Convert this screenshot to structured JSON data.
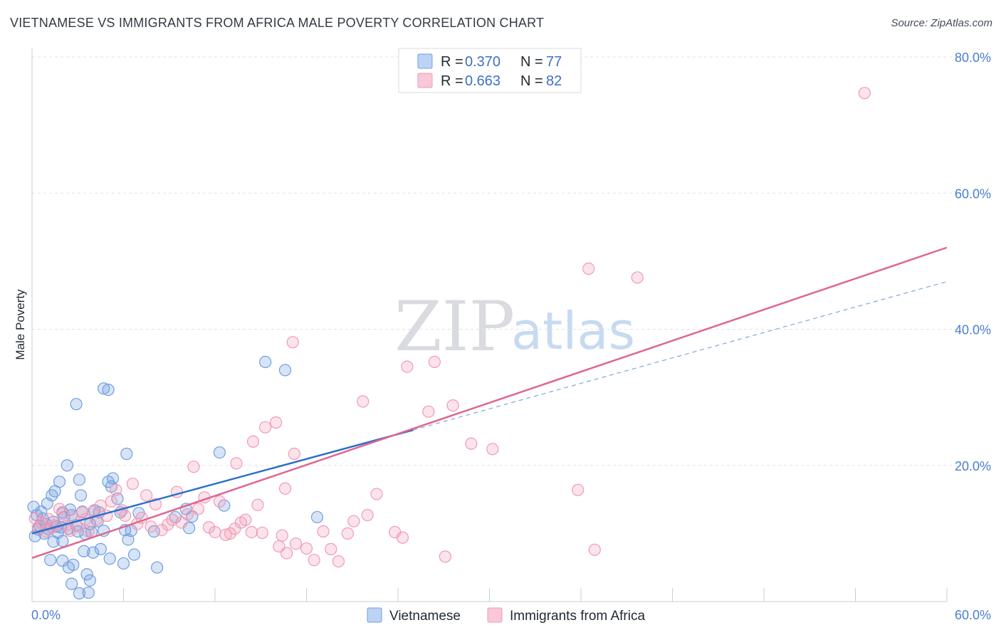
{
  "header": {
    "title": "VIETNAMESE VS IMMIGRANTS FROM AFRICA MALE POVERTY CORRELATION CHART",
    "source": "Source: ZipAtlas.com"
  },
  "watermark": {
    "zip": "ZIP",
    "atlas": "atlas"
  },
  "chart_data": {
    "type": "scatter",
    "title": "VIETNAMESE VS IMMIGRANTS FROM AFRICA MALE POVERTY CORRELATION CHART",
    "xlabel": "",
    "ylabel": "Male Poverty",
    "xlim": [
      0,
      60
    ],
    "ylim": [
      0,
      80
    ],
    "x_ticks": [
      0,
      60
    ],
    "x_tick_labels": [
      "0.0%",
      "60.0%"
    ],
    "y_ticks": [
      20,
      40,
      60,
      80
    ],
    "y_tick_labels": [
      "20.0%",
      "40.0%",
      "60.0%",
      "80.0%"
    ],
    "grid": true,
    "legend_position": "top-center",
    "colors": {
      "vietnamese": "#6f9fe0",
      "africa": "#f09ab5",
      "vietnamese_line": "#2b6fcb",
      "africa_line": "#e0668f"
    },
    "legend": [
      {
        "r_label": "R =",
        "r_value": "0.370",
        "n_label": "N =",
        "n_value": "77"
      },
      {
        "r_label": "R =",
        "r_value": "0.663",
        "n_label": "N =",
        "n_value": "82"
      }
    ],
    "series": [
      {
        "name": "Vietnamese",
        "r": 0.37,
        "n": 77,
        "trend": {
          "x0": 0,
          "y0": 10.0,
          "x1": 25,
          "y1": 25.2,
          "dash_to_x": 60,
          "dash_to_y": 47.0
        },
        "points": [
          [
            0.1,
            13.9
          ],
          [
            0.3,
            12.7
          ],
          [
            0.5,
            11.1
          ],
          [
            0.2,
            9.6
          ],
          [
            0.7,
            12.2
          ],
          [
            0.9,
            11.4
          ],
          [
            1.1,
            10.6
          ],
          [
            0.6,
            13.2
          ],
          [
            1.0,
            14.4
          ],
          [
            1.3,
            15.6
          ],
          [
            1.5,
            16.2
          ],
          [
            1.4,
            11.7
          ],
          [
            1.7,
            10.1
          ],
          [
            1.9,
            10.9
          ],
          [
            2.0,
            13.1
          ],
          [
            2.1,
            12.4
          ],
          [
            2.5,
            13.5
          ],
          [
            2.4,
            10.7
          ],
          [
            2.6,
            12.7
          ],
          [
            3.0,
            10.3
          ],
          [
            2.9,
            11.2
          ],
          [
            3.2,
            15.6
          ],
          [
            3.3,
            13.2
          ],
          [
            3.5,
            9.9
          ],
          [
            3.8,
            11.4
          ],
          [
            3.9,
            10.2
          ],
          [
            4.1,
            13.4
          ],
          [
            4.4,
            13.1
          ],
          [
            4.7,
            10.4
          ],
          [
            5.0,
            17.6
          ],
          [
            5.2,
            16.9
          ],
          [
            5.3,
            18.1
          ],
          [
            5.6,
            15.1
          ],
          [
            5.8,
            13.1
          ],
          [
            6.1,
            10.5
          ],
          [
            6.3,
            9.1
          ],
          [
            6.2,
            21.7
          ],
          [
            2.3,
            20.0
          ],
          [
            1.8,
            17.6
          ],
          [
            3.1,
            17.9
          ],
          [
            2.9,
            29.0
          ],
          [
            4.7,
            31.3
          ],
          [
            5.0,
            31.1
          ],
          [
            2.0,
            8.9
          ],
          [
            1.2,
            6.1
          ],
          [
            2.0,
            6.0
          ],
          [
            2.4,
            5.0
          ],
          [
            2.7,
            5.4
          ],
          [
            3.4,
            7.4
          ],
          [
            3.6,
            4.0
          ],
          [
            3.8,
            3.1
          ],
          [
            2.6,
            2.6
          ],
          [
            3.1,
            1.2
          ],
          [
            3.7,
            1.3
          ],
          [
            4.0,
            7.2
          ],
          [
            4.5,
            7.7
          ],
          [
            5.1,
            6.3
          ],
          [
            6.0,
            5.6
          ],
          [
            6.7,
            6.9
          ],
          [
            8.2,
            5.0
          ],
          [
            8.0,
            10.3
          ],
          [
            9.4,
            12.4
          ],
          [
            10.3,
            10.8
          ],
          [
            10.1,
            13.6
          ],
          [
            10.5,
            12.5
          ],
          [
            12.6,
            14.1
          ],
          [
            12.3,
            21.9
          ],
          [
            15.3,
            35.2
          ],
          [
            16.6,
            34.0
          ],
          [
            18.7,
            12.4
          ],
          [
            6.5,
            10.4
          ],
          [
            7.0,
            13.0
          ],
          [
            1.6,
            11.0
          ],
          [
            0.8,
            10.0
          ],
          [
            1.4,
            8.8
          ],
          [
            4.3,
            11.8
          ],
          [
            0.4,
            10.6
          ]
        ]
      },
      {
        "name": "Immigrants from Africa",
        "r": 0.663,
        "n": 82,
        "trend": {
          "x0": 0,
          "y0": 6.4,
          "x1": 60,
          "y1": 52.0
        },
        "points": [
          [
            0.2,
            12.2
          ],
          [
            0.4,
            10.8
          ],
          [
            0.6,
            11.6
          ],
          [
            0.9,
            10.3
          ],
          [
            1.1,
            12.1
          ],
          [
            1.3,
            10.9
          ],
          [
            1.5,
            11.2
          ],
          [
            1.8,
            13.6
          ],
          [
            2.0,
            12.9
          ],
          [
            2.2,
            11.1
          ],
          [
            2.5,
            10.4
          ],
          [
            2.7,
            12.4
          ],
          [
            3.0,
            11.0
          ],
          [
            3.3,
            13.1
          ],
          [
            3.5,
            12.1
          ],
          [
            3.7,
            10.3
          ],
          [
            4.0,
            13.2
          ],
          [
            4.2,
            12.0
          ],
          [
            4.5,
            14.1
          ],
          [
            4.9,
            12.6
          ],
          [
            5.2,
            14.7
          ],
          [
            5.5,
            16.4
          ],
          [
            5.9,
            13.4
          ],
          [
            6.1,
            12.6
          ],
          [
            6.6,
            17.3
          ],
          [
            6.9,
            11.4
          ],
          [
            7.2,
            12.3
          ],
          [
            7.5,
            15.6
          ],
          [
            7.8,
            11.0
          ],
          [
            8.1,
            14.3
          ],
          [
            8.5,
            10.5
          ],
          [
            8.9,
            11.3
          ],
          [
            9.2,
            12.0
          ],
          [
            9.5,
            16.1
          ],
          [
            9.8,
            11.6
          ],
          [
            10.2,
            12.8
          ],
          [
            10.6,
            19.8
          ],
          [
            10.9,
            13.6
          ],
          [
            11.3,
            15.3
          ],
          [
            11.6,
            10.9
          ],
          [
            12.0,
            10.2
          ],
          [
            12.3,
            14.7
          ],
          [
            12.7,
            9.8
          ],
          [
            13.0,
            10.0
          ],
          [
            13.3,
            10.7
          ],
          [
            13.7,
            11.6
          ],
          [
            14.0,
            12.0
          ],
          [
            14.4,
            10.2
          ],
          [
            14.8,
            14.2
          ],
          [
            15.1,
            10.1
          ],
          [
            13.4,
            20.3
          ],
          [
            14.5,
            23.5
          ],
          [
            15.3,
            25.6
          ],
          [
            16.0,
            26.3
          ],
          [
            17.2,
            21.7
          ],
          [
            16.6,
            16.6
          ],
          [
            16.2,
            8.1
          ],
          [
            16.4,
            9.7
          ],
          [
            16.7,
            7.1
          ],
          [
            17.3,
            8.5
          ],
          [
            18.0,
            7.8
          ],
          [
            18.5,
            6.1
          ],
          [
            19.6,
            7.7
          ],
          [
            20.1,
            5.9
          ],
          [
            19.1,
            10.3
          ],
          [
            20.7,
            10.0
          ],
          [
            21.1,
            11.8
          ],
          [
            22.0,
            12.7
          ],
          [
            22.6,
            15.8
          ],
          [
            23.8,
            10.2
          ],
          [
            24.3,
            9.4
          ],
          [
            27.1,
            6.6
          ],
          [
            26.0,
            27.9
          ],
          [
            27.6,
            28.8
          ],
          [
            28.8,
            23.2
          ],
          [
            24.6,
            34.5
          ],
          [
            26.4,
            35.2
          ],
          [
            17.1,
            38.1
          ],
          [
            21.7,
            29.4
          ],
          [
            30.2,
            22.4
          ],
          [
            35.8,
            16.4
          ],
          [
            36.9,
            7.6
          ]
        ],
        "outliers": [
          [
            36.5,
            48.9
          ],
          [
            39.7,
            47.6
          ],
          [
            54.6,
            74.7
          ]
        ]
      }
    ]
  },
  "bottom_legend": [
    {
      "label": "Vietnamese"
    },
    {
      "label": "Immigrants from Africa"
    }
  ]
}
